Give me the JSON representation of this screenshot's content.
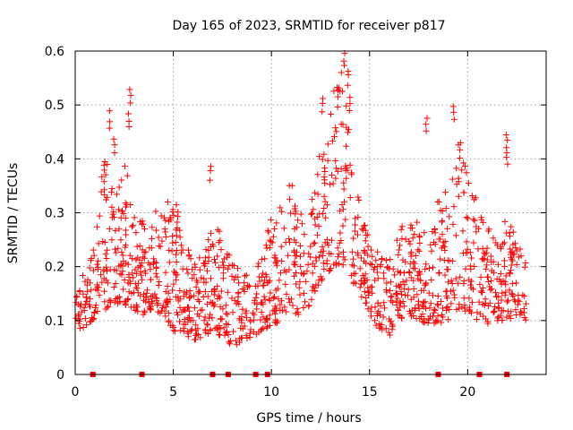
{
  "chart_data": {
    "type": "scatter",
    "title": "Day 165 of 2023, SRMTID for receiver p817",
    "xlabel": "GPS time / hours",
    "ylabel": "SRMTID / TECUs",
    "xlim": [
      0,
      24
    ],
    "ylim": [
      0,
      0.6
    ],
    "xticks": [
      "0",
      "5",
      "10",
      "15",
      "20"
    ],
    "yticks": [
      "0",
      "0.1",
      "0.2",
      "0.3",
      "0.4",
      "0.5",
      "0.6"
    ],
    "xtick_values": [
      0,
      5,
      10,
      15,
      20
    ],
    "ytick_values": [
      0,
      0.1,
      0.2,
      0.3,
      0.4,
      0.5,
      0.6
    ],
    "grid": true,
    "marker": "+",
    "color": "#ff0000",
    "envelope": {
      "x": [
        0,
        0.5,
        1,
        1.5,
        2,
        2.5,
        3,
        3.5,
        4,
        4.5,
        5,
        5.5,
        6,
        6.5,
        7,
        7.5,
        8,
        8.5,
        9,
        9.5,
        10,
        10.5,
        11,
        11.5,
        12,
        12.5,
        13,
        13.5,
        14,
        14.5,
        15,
        15.5,
        16,
        16.5,
        17,
        17.5,
        18,
        18.5,
        19,
        19.5,
        20,
        20.5,
        21,
        21.5,
        22,
        22.5,
        23
      ],
      "low": [
        0.07,
        0.09,
        0.1,
        0.12,
        0.13,
        0.13,
        0.12,
        0.11,
        0.12,
        0.11,
        0.08,
        0.08,
        0.06,
        0.07,
        0.08,
        0.07,
        0.05,
        0.06,
        0.07,
        0.08,
        0.09,
        0.1,
        0.1,
        0.11,
        0.13,
        0.17,
        0.19,
        0.2,
        0.18,
        0.15,
        0.11,
        0.08,
        0.07,
        0.1,
        0.11,
        0.1,
        0.09,
        0.09,
        0.1,
        0.11,
        0.12,
        0.1,
        0.09,
        0.1,
        0.1,
        0.11,
        0.1
      ],
      "high": [
        0.15,
        0.2,
        0.24,
        0.42,
        0.35,
        0.4,
        0.32,
        0.28,
        0.33,
        0.3,
        0.35,
        0.27,
        0.2,
        0.23,
        0.32,
        0.25,
        0.22,
        0.18,
        0.2,
        0.22,
        0.3,
        0.32,
        0.36,
        0.3,
        0.33,
        0.42,
        0.5,
        0.58,
        0.45,
        0.35,
        0.27,
        0.22,
        0.24,
        0.28,
        0.3,
        0.28,
        0.26,
        0.33,
        0.35,
        0.43,
        0.38,
        0.32,
        0.28,
        0.26,
        0.3,
        0.25,
        0.22
      ]
    },
    "spikes": [
      {
        "x": 1.75,
        "y": 0.49
      },
      {
        "x": 2.0,
        "y": 0.44
      },
      {
        "x": 2.8,
        "y": 0.53
      },
      {
        "x": 2.75,
        "y": 0.49
      },
      {
        "x": 6.9,
        "y": 0.39
      },
      {
        "x": 12.6,
        "y": 0.52
      },
      {
        "x": 13.4,
        "y": 0.54
      },
      {
        "x": 13.7,
        "y": 0.6
      },
      {
        "x": 13.9,
        "y": 0.57
      },
      {
        "x": 14.0,
        "y": 0.52
      },
      {
        "x": 17.9,
        "y": 0.48
      },
      {
        "x": 19.3,
        "y": 0.5
      },
      {
        "x": 19.6,
        "y": 0.43
      },
      {
        "x": 22.0,
        "y": 0.45
      },
      {
        "x": 22.0,
        "y": 0.42
      }
    ],
    "data_gaps_hours": [
      0.9,
      3.4,
      7.0,
      7.8,
      9.2,
      9.8,
      18.5,
      20.6,
      22.0
    ],
    "num_points": 1400
  }
}
